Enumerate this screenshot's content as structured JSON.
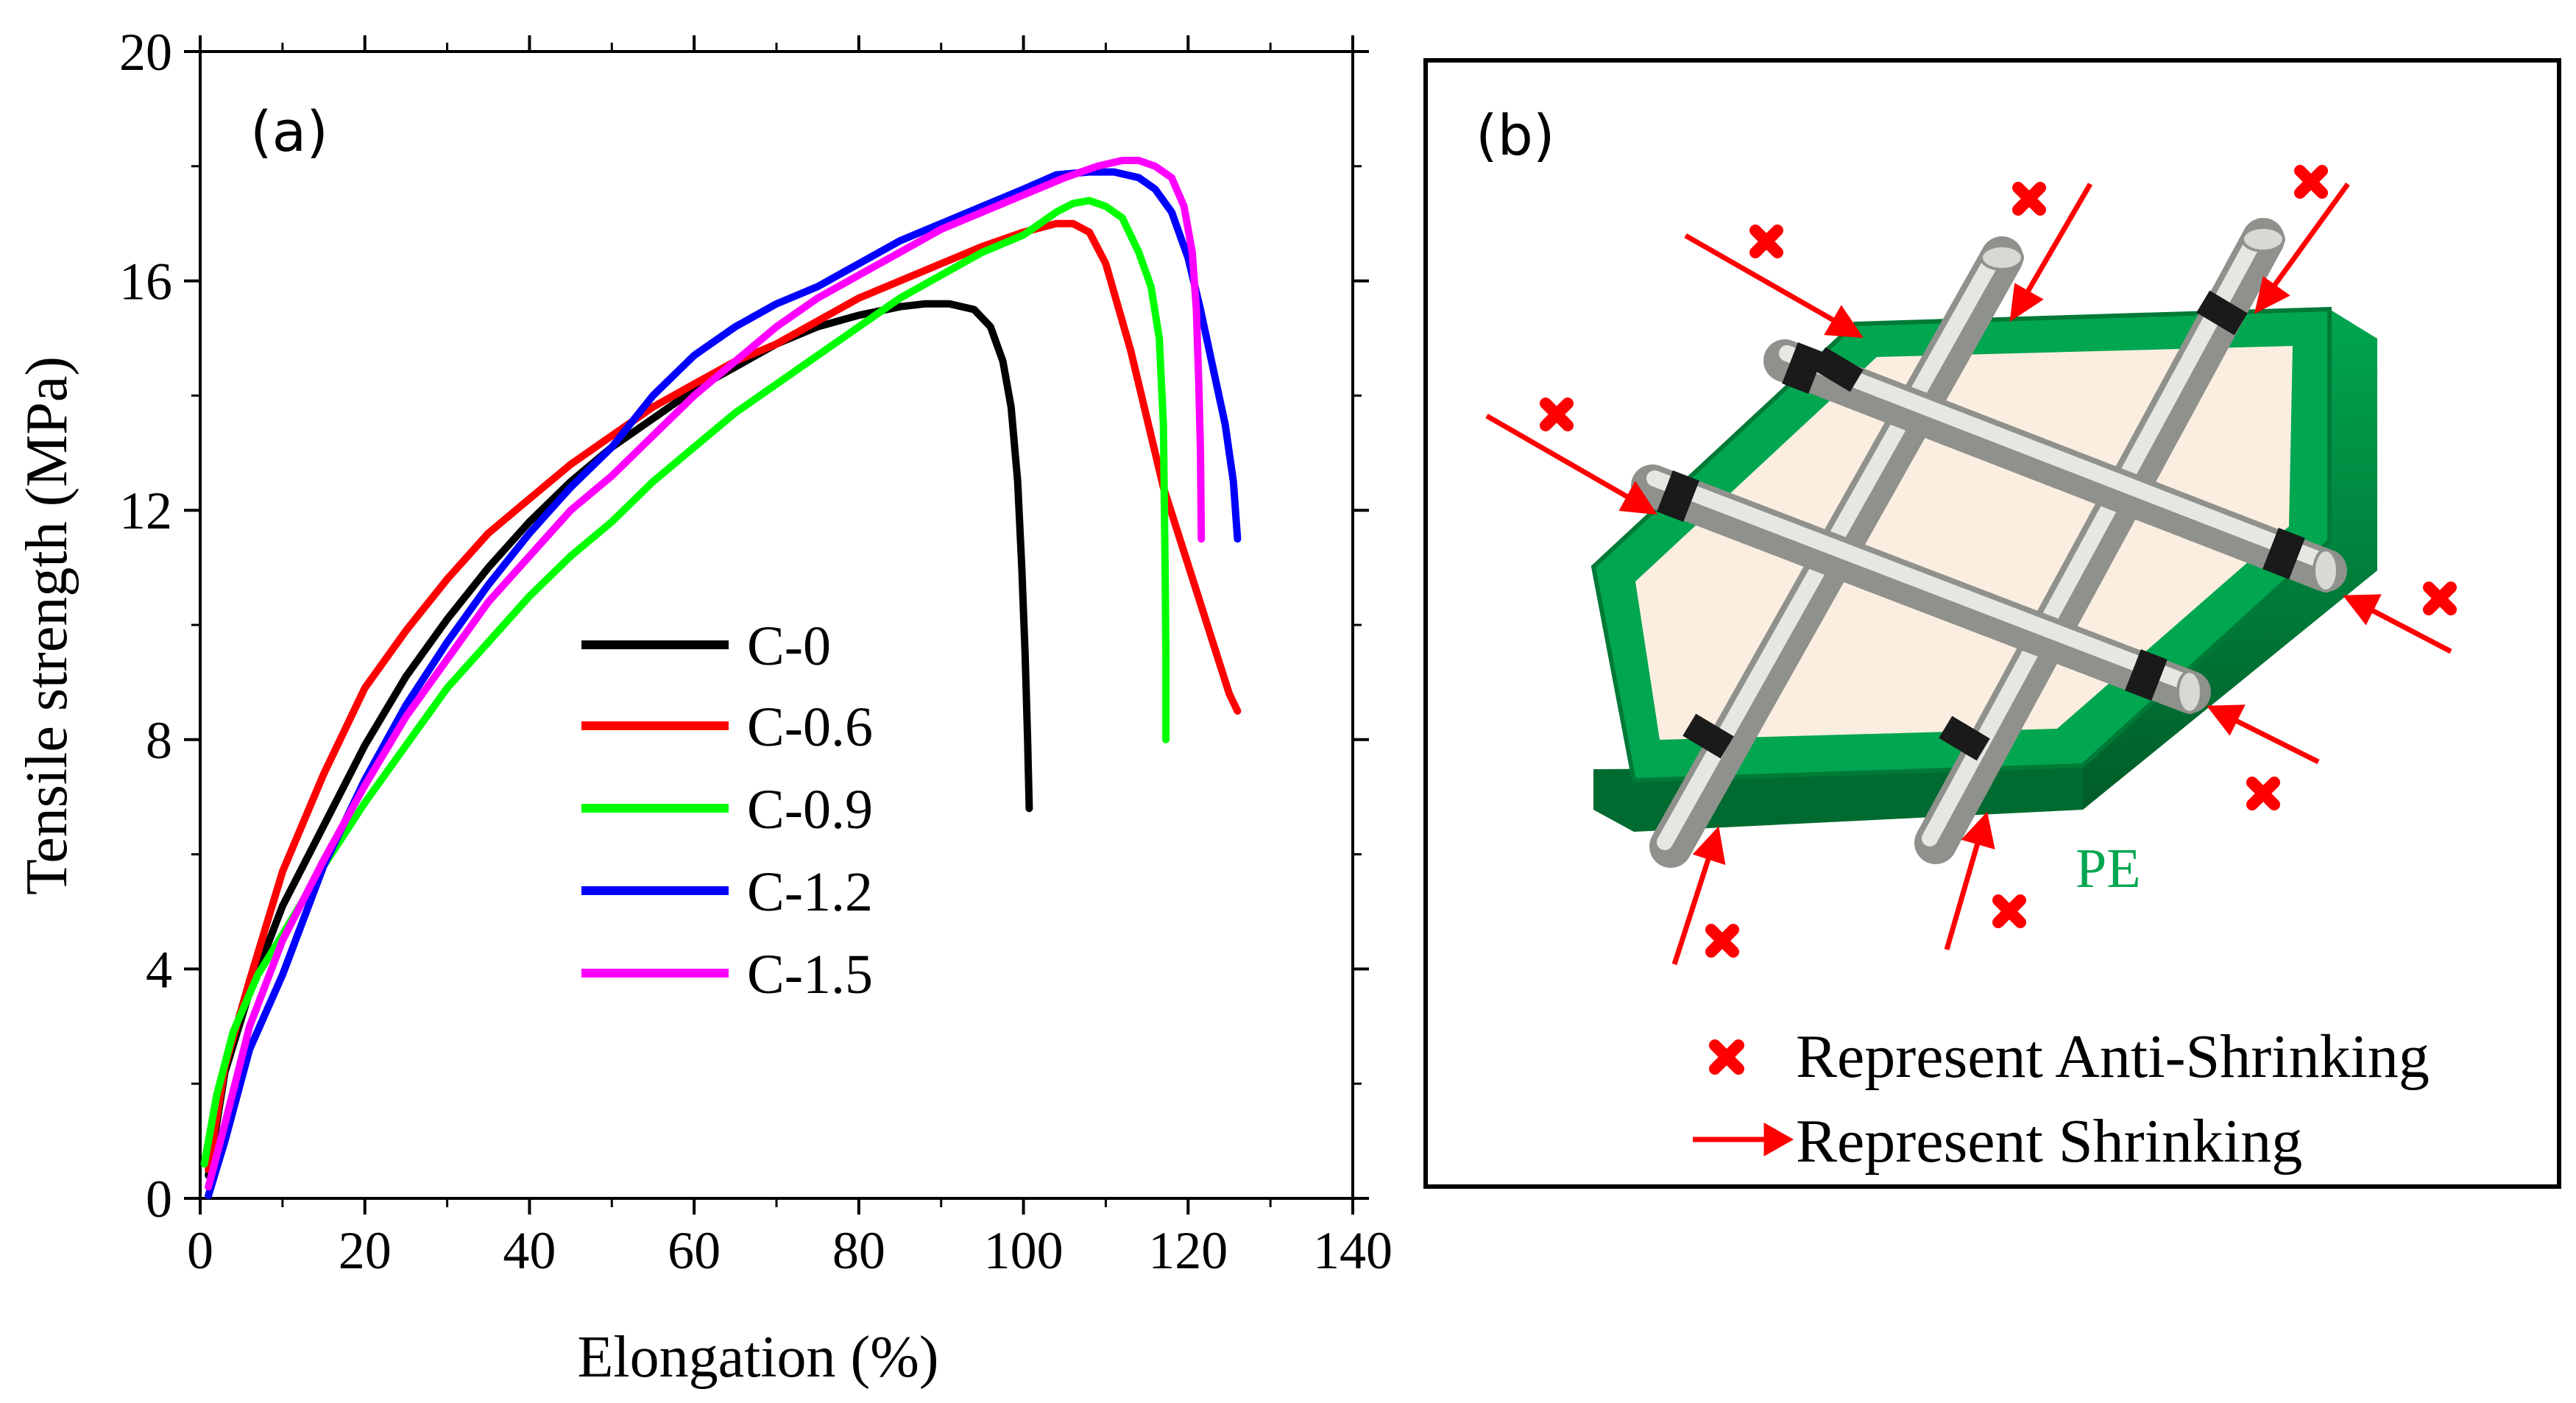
{
  "chart_data": {
    "type": "line",
    "panel_label": "(a)",
    "xlabel": "Elongation (%)",
    "ylabel": "Tensile strength (MPa)",
    "xlim": [
      0,
      140
    ],
    "ylim": [
      0,
      20
    ],
    "x_ticks": [
      "0",
      "20",
      "40",
      "60",
      "80",
      "100",
      "120",
      "140"
    ],
    "y_ticks": [
      "0",
      "4",
      "8",
      "12",
      "16",
      "20"
    ],
    "legend_position": "center",
    "series": [
      {
        "name": "C-0",
        "color": "#000000",
        "points": [
          [
            1,
            0.4
          ],
          [
            3,
            2.2
          ],
          [
            6,
            3.6
          ],
          [
            10,
            5.1
          ],
          [
            15,
            6.5
          ],
          [
            20,
            7.9
          ],
          [
            25,
            9.1
          ],
          [
            30,
            10.1
          ],
          [
            35,
            11.0
          ],
          [
            40,
            11.8
          ],
          [
            45,
            12.5
          ],
          [
            50,
            13.1
          ],
          [
            55,
            13.6
          ],
          [
            60,
            14.1
          ],
          [
            65,
            14.5
          ],
          [
            70,
            14.9
          ],
          [
            75,
            15.2
          ],
          [
            80,
            15.4
          ],
          [
            85,
            15.55
          ],
          [
            88,
            15.6
          ],
          [
            91,
            15.6
          ],
          [
            94,
            15.5
          ],
          [
            96,
            15.2
          ],
          [
            97.5,
            14.6
          ],
          [
            98.5,
            13.8
          ],
          [
            99.3,
            12.5
          ],
          [
            99.8,
            11.0
          ],
          [
            100.2,
            9.5
          ],
          [
            100.5,
            8.0
          ],
          [
            100.7,
            6.8
          ]
        ]
      },
      {
        "name": "C-0.6",
        "color": "#ff0000",
        "points": [
          [
            1,
            0.5
          ],
          [
            3,
            2.3
          ],
          [
            6,
            3.8
          ],
          [
            10,
            5.7
          ],
          [
            15,
            7.4
          ],
          [
            20,
            8.9
          ],
          [
            25,
            9.9
          ],
          [
            30,
            10.8
          ],
          [
            35,
            11.6
          ],
          [
            40,
            12.2
          ],
          [
            45,
            12.8
          ],
          [
            50,
            13.3
          ],
          [
            55,
            13.8
          ],
          [
            60,
            14.2
          ],
          [
            65,
            14.6
          ],
          [
            70,
            14.9
          ],
          [
            75,
            15.3
          ],
          [
            80,
            15.7
          ],
          [
            85,
            16.0
          ],
          [
            90,
            16.3
          ],
          [
            95,
            16.6
          ],
          [
            100,
            16.85
          ],
          [
            104,
            17.0
          ],
          [
            106,
            17.0
          ],
          [
            108,
            16.85
          ],
          [
            110,
            16.3
          ],
          [
            111,
            15.8
          ],
          [
            113,
            14.8
          ],
          [
            115,
            13.6
          ],
          [
            117,
            12.4
          ],
          [
            119,
            11.5
          ],
          [
            121,
            10.6
          ],
          [
            123,
            9.7
          ],
          [
            125,
            8.8
          ],
          [
            126,
            8.5
          ]
        ]
      },
      {
        "name": "C-0.9",
        "color": "#00ff00",
        "points": [
          [
            0.5,
            0.6
          ],
          [
            2,
            1.8
          ],
          [
            4,
            2.9
          ],
          [
            7,
            3.9
          ],
          [
            10,
            4.6
          ],
          [
            15,
            5.8
          ],
          [
            20,
            6.9
          ],
          [
            25,
            7.9
          ],
          [
            30,
            8.9
          ],
          [
            35,
            9.7
          ],
          [
            40,
            10.5
          ],
          [
            45,
            11.2
          ],
          [
            50,
            11.8
          ],
          [
            55,
            12.5
          ],
          [
            60,
            13.1
          ],
          [
            65,
            13.7
          ],
          [
            70,
            14.2
          ],
          [
            75,
            14.7
          ],
          [
            80,
            15.2
          ],
          [
            85,
            15.7
          ],
          [
            90,
            16.1
          ],
          [
            95,
            16.5
          ],
          [
            100,
            16.8
          ],
          [
            104,
            17.2
          ],
          [
            106,
            17.35
          ],
          [
            108,
            17.4
          ],
          [
            110,
            17.3
          ],
          [
            112,
            17.1
          ],
          [
            114,
            16.5
          ],
          [
            115.5,
            15.9
          ],
          [
            116.5,
            15.0
          ],
          [
            117,
            13.5
          ],
          [
            117.2,
            11.0
          ],
          [
            117.3,
            9.5
          ],
          [
            117.3,
            8.0
          ]
        ]
      },
      {
        "name": "C-1.2",
        "color": "#0000ff",
        "points": [
          [
            1,
            0.05
          ],
          [
            3,
            1.0
          ],
          [
            6,
            2.6
          ],
          [
            10,
            3.9
          ],
          [
            15,
            5.8
          ],
          [
            20,
            7.3
          ],
          [
            25,
            8.6
          ],
          [
            30,
            9.7
          ],
          [
            35,
            10.7
          ],
          [
            40,
            11.6
          ],
          [
            45,
            12.4
          ],
          [
            50,
            13.1
          ],
          [
            55,
            14.0
          ],
          [
            60,
            14.7
          ],
          [
            65,
            15.2
          ],
          [
            70,
            15.6
          ],
          [
            75,
            15.9
          ],
          [
            80,
            16.3
          ],
          [
            85,
            16.7
          ],
          [
            90,
            17.0
          ],
          [
            95,
            17.3
          ],
          [
            100,
            17.6
          ],
          [
            104,
            17.85
          ],
          [
            108,
            17.9
          ],
          [
            111,
            17.9
          ],
          [
            114,
            17.8
          ],
          [
            116,
            17.6
          ],
          [
            118,
            17.2
          ],
          [
            120,
            16.4
          ],
          [
            121.5,
            15.5
          ],
          [
            123,
            14.5
          ],
          [
            124.5,
            13.5
          ],
          [
            125.5,
            12.5
          ],
          [
            126,
            11.5
          ]
        ]
      },
      {
        "name": "C-1.5",
        "color": "#ff00ff",
        "points": [
          [
            1,
            0.2
          ],
          [
            3,
            1.3
          ],
          [
            6,
            3.0
          ],
          [
            10,
            4.5
          ],
          [
            15,
            5.9
          ],
          [
            20,
            7.2
          ],
          [
            25,
            8.4
          ],
          [
            30,
            9.4
          ],
          [
            35,
            10.4
          ],
          [
            40,
            11.2
          ],
          [
            45,
            12.0
          ],
          [
            50,
            12.6
          ],
          [
            55,
            13.3
          ],
          [
            60,
            14.0
          ],
          [
            65,
            14.6
          ],
          [
            70,
            15.2
          ],
          [
            75,
            15.7
          ],
          [
            80,
            16.1
          ],
          [
            85,
            16.5
          ],
          [
            90,
            16.9
          ],
          [
            95,
            17.2
          ],
          [
            100,
            17.5
          ],
          [
            105,
            17.8
          ],
          [
            109,
            18.0
          ],
          [
            112,
            18.1
          ],
          [
            114,
            18.1
          ],
          [
            116,
            18.0
          ],
          [
            118,
            17.8
          ],
          [
            119.5,
            17.3
          ],
          [
            120.5,
            16.5
          ],
          [
            121,
            15.5
          ],
          [
            121.3,
            14.2
          ],
          [
            121.5,
            13.0
          ],
          [
            121.6,
            11.5
          ]
        ]
      }
    ]
  },
  "schematic": {
    "panel_label": "(b)",
    "pe_label": "PE",
    "legend": {
      "anti_label": "Represent Anti-Shrinking",
      "shrink_label": "Represent Shrinking"
    },
    "colors": {
      "frame_green": "#00a650",
      "frame_dark": "#007a37",
      "film_fill": "#fbeee0",
      "rod_fill": "#c9cbc6",
      "marker_red": "#ff0000"
    }
  }
}
